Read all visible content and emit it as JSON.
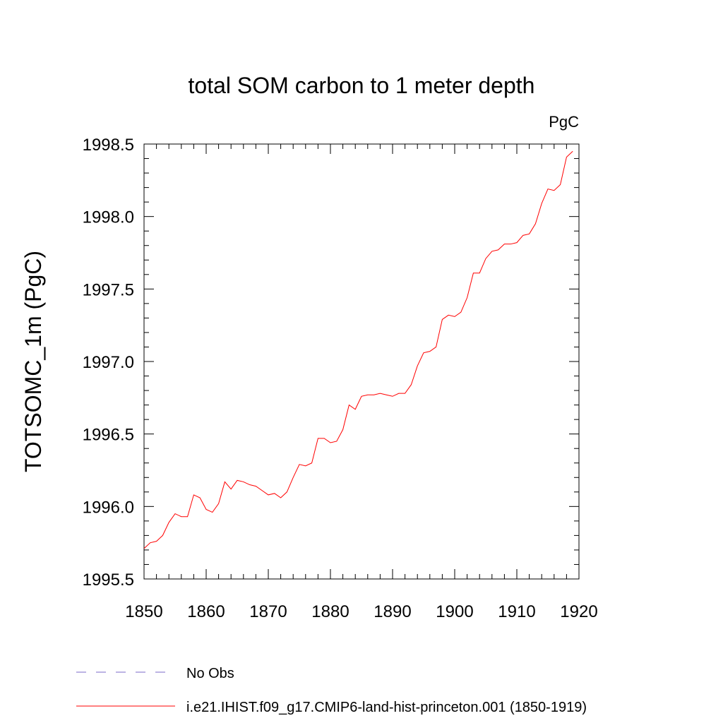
{
  "chart_data": {
    "type": "line",
    "title": "total SOM carbon to 1 meter depth",
    "units_label": "PgC",
    "xlabel": "",
    "ylabel": "TOTSOMC_1m  (PgC)",
    "xlim": [
      1850,
      1920
    ],
    "ylim": [
      1995.5,
      1998.5
    ],
    "x_ticks": [
      "1850",
      "1860",
      "1870",
      "1880",
      "1890",
      "1900",
      "1910",
      "1920"
    ],
    "y_ticks": [
      "1995.5",
      "1996.0",
      "1996.5",
      "1997.0",
      "1997.5",
      "1998.0",
      "1998.5"
    ],
    "grid": false,
    "legend_position": "bottom",
    "series": [
      {
        "name": "i.e21.IHIST.f09_g17.CMIP6-land-hist-princeton.001 (1850-1919)",
        "color": "#ff0000",
        "line_style": "solid",
        "x": [
          1850,
          1851,
          1852,
          1853,
          1854,
          1855,
          1856,
          1857,
          1858,
          1859,
          1860,
          1861,
          1862,
          1863,
          1864,
          1865,
          1866,
          1867,
          1868,
          1869,
          1870,
          1871,
          1872,
          1873,
          1874,
          1875,
          1876,
          1877,
          1878,
          1879,
          1880,
          1881,
          1882,
          1883,
          1884,
          1885,
          1886,
          1887,
          1888,
          1889,
          1890,
          1891,
          1892,
          1893,
          1894,
          1895,
          1896,
          1897,
          1898,
          1899,
          1900,
          1901,
          1902,
          1903,
          1904,
          1905,
          1906,
          1907,
          1908,
          1909,
          1910,
          1911,
          1912,
          1913,
          1914,
          1915,
          1916,
          1917,
          1918,
          1919
        ],
        "values": [
          1995.71,
          1995.75,
          1995.76,
          1995.8,
          1995.89,
          1995.95,
          1995.93,
          1995.93,
          1996.08,
          1996.06,
          1995.98,
          1995.96,
          1996.02,
          1996.17,
          1996.12,
          1996.18,
          1996.17,
          1996.15,
          1996.14,
          1996.11,
          1996.08,
          1996.09,
          1996.06,
          1996.1,
          1996.2,
          1996.29,
          1996.28,
          1996.3,
          1996.47,
          1996.47,
          1996.44,
          1996.45,
          1996.53,
          1996.7,
          1996.67,
          1996.76,
          1996.77,
          1996.77,
          1996.78,
          1996.77,
          1996.76,
          1996.78,
          1996.78,
          1996.84,
          1996.97,
          1997.06,
          1997.07,
          1997.1,
          1997.29,
          1997.32,
          1997.31,
          1997.34,
          1997.44,
          1997.61,
          1997.61,
          1997.71,
          1997.76,
          1997.77,
          1997.81,
          1997.81,
          1997.82,
          1997.87,
          1997.88,
          1997.95,
          1998.09,
          1998.19,
          1998.18,
          1998.22,
          1998.41,
          1998.45
        ]
      }
    ],
    "legend": [
      {
        "label": "No Obs",
        "color": "#7b68c8",
        "line_style": "dashed"
      },
      {
        "label": "i.e21.IHIST.f09_g17.CMIP6-land-hist-princeton.001 (1850-1919)",
        "color": "#ff0000",
        "line_style": "solid"
      }
    ]
  }
}
